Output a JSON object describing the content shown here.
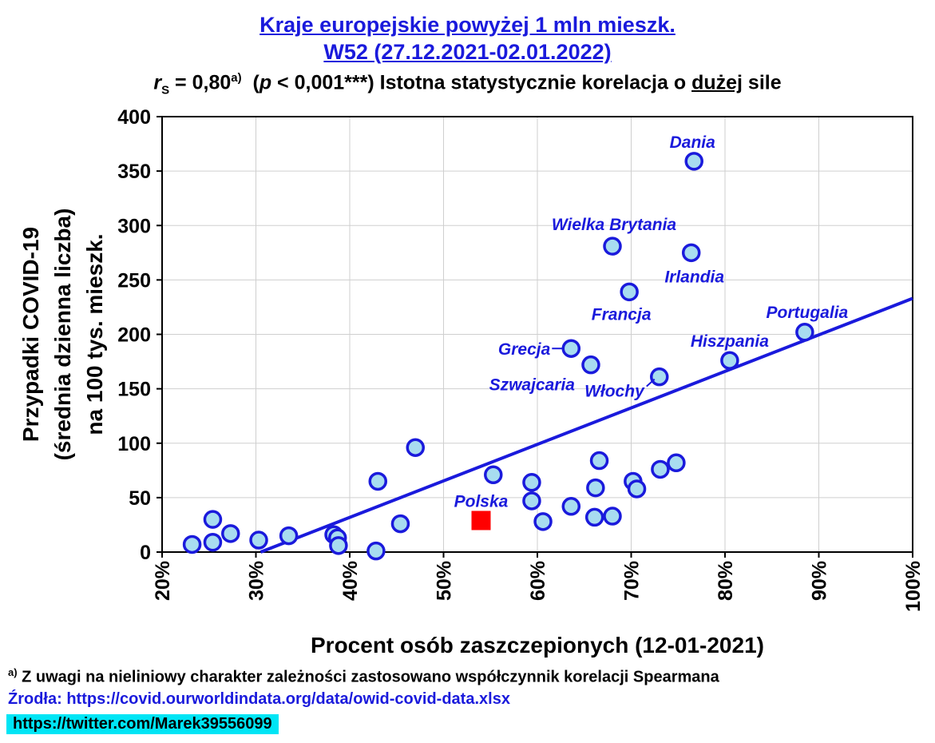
{
  "header": {
    "title_line1": "Kraje europejskie powyżej 1 mln mieszk.",
    "title_line2": "W52 (27.12.2021-02.01.2022)",
    "subtitle_r": "r",
    "subtitle_s": "S",
    "subtitle_value": " = 0,80",
    "subtitle_sup": "a)",
    "subtitle_p_open": "  (",
    "subtitle_p": "p",
    "subtitle_rest": " < 0,001***) Istotna statystycznie korelacja o ",
    "subtitle_strength": "dużej",
    "subtitle_end": " sile"
  },
  "footer": {
    "note_mark": "a)",
    "note_text": " Z uwagi na nieliniowy charakter zależności zastosowano współczynnik korelacji Spearmana",
    "source": "Źrodła: https://covid.ourworldindata.org/data/owid-covid-data.xlsx",
    "twitter": "https://twitter.com/Marek39556099"
  },
  "chart_data": {
    "type": "scatter",
    "xlabel": "Procent osób zaszczepionych (12-01-2021)",
    "ylabel_lines": [
      "Przypadki COVID-19",
      "(średnia dzienna liczba)",
      "na 100 tys. mieszk."
    ],
    "xlim": [
      20,
      100
    ],
    "ylim": [
      0,
      400
    ],
    "x_ticks": [
      20,
      30,
      40,
      50,
      60,
      70,
      80,
      90,
      100
    ],
    "x_tick_labels": [
      "20%",
      "30%",
      "40%",
      "50%",
      "60%",
      "70%",
      "80%",
      "90%",
      "100%"
    ],
    "y_ticks": [
      0,
      50,
      100,
      150,
      200,
      250,
      300,
      350,
      400
    ],
    "y_tick_labels": [
      "0",
      "50",
      "100",
      "150",
      "200",
      "250",
      "300",
      "350",
      "400"
    ],
    "grid": true,
    "colors": {
      "points_fill": "#a8dcf0",
      "points_stroke": "#1a1adc",
      "highlight": "#ff0000",
      "line": "#1a1adc",
      "labels": "#1a1adc"
    },
    "regression": {
      "x": [
        30.5,
        100
      ],
      "y": [
        0,
        233
      ]
    },
    "highlight": {
      "label": "Polska",
      "x": 54,
      "y": 29
    },
    "labeled_points": [
      {
        "label": "Dania",
        "x": 76.7,
        "y": 359
      },
      {
        "label": "Wielka Brytania",
        "x": 68,
        "y": 281
      },
      {
        "label": "Irlandia",
        "x": 76.4,
        "y": 275
      },
      {
        "label": "Francja",
        "x": 69.8,
        "y": 239
      },
      {
        "label": "Portugalia",
        "x": 88.5,
        "y": 202
      },
      {
        "label": "Grecja",
        "x": 63.6,
        "y": 187
      },
      {
        "label": "Hiszpania",
        "x": 80.5,
        "y": 176
      },
      {
        "label": "Szwajcaria",
        "x": 65.7,
        "y": 172
      },
      {
        "label": "Włochy",
        "x": 73,
        "y": 161
      }
    ],
    "points": [
      {
        "x": 23.2,
        "y": 7
      },
      {
        "x": 25.4,
        "y": 30
      },
      {
        "x": 25.4,
        "y": 9
      },
      {
        "x": 27.3,
        "y": 17
      },
      {
        "x": 30.3,
        "y": 11
      },
      {
        "x": 33.5,
        "y": 15
      },
      {
        "x": 38.3,
        "y": 16
      },
      {
        "x": 38.7,
        "y": 13
      },
      {
        "x": 38.8,
        "y": 6
      },
      {
        "x": 42.8,
        "y": 1
      },
      {
        "x": 43,
        "y": 65
      },
      {
        "x": 45.4,
        "y": 26
      },
      {
        "x": 47,
        "y": 96
      },
      {
        "x": 55.3,
        "y": 71
      },
      {
        "x": 59.4,
        "y": 64
      },
      {
        "x": 59.4,
        "y": 47
      },
      {
        "x": 60.6,
        "y": 28
      },
      {
        "x": 63.6,
        "y": 42
      },
      {
        "x": 66.1,
        "y": 32
      },
      {
        "x": 66.2,
        "y": 59
      },
      {
        "x": 66.6,
        "y": 84
      },
      {
        "x": 68,
        "y": 33
      },
      {
        "x": 70.2,
        "y": 65
      },
      {
        "x": 70.6,
        "y": 58
      },
      {
        "x": 73.1,
        "y": 76
      },
      {
        "x": 74.8,
        "y": 82
      }
    ]
  }
}
